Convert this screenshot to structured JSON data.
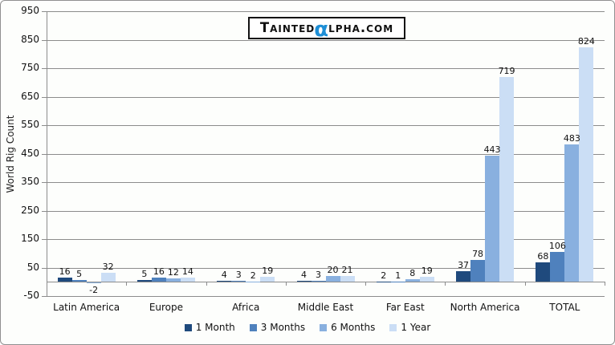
{
  "logo": {
    "prefix": "Tainted",
    "alpha": "α",
    "suffix": "lpha.com",
    "alpha_color": "#1E8FD6"
  },
  "chart_data": {
    "type": "bar",
    "title": "",
    "categories": [
      "Latin America",
      "Europe",
      "Africa",
      "Middle East",
      "Far East",
      "North America",
      "TOTAL"
    ],
    "series": [
      {
        "name": "1 Month",
        "color": "#1F4A7D",
        "pattern": "none",
        "values": [
          16,
          5,
          4,
          4,
          2,
          37,
          68
        ]
      },
      {
        "name": "3 Months",
        "color": "#4F81BD",
        "pattern": "none",
        "values": [
          5,
          16,
          3,
          3,
          1,
          78,
          106
        ]
      },
      {
        "name": "6 Months",
        "color": "#89B0DF",
        "pattern": "dots-light",
        "values": [
          -2,
          12,
          2,
          20,
          8,
          443,
          483
        ]
      },
      {
        "name": "1 Year",
        "color": "#CBDEF5",
        "pattern": "dots-blue",
        "values": [
          32,
          14,
          19,
          21,
          19,
          719,
          824
        ]
      }
    ],
    "xlabel": "",
    "ylabel": "World Rig Count",
    "ylim": [
      -50,
      950
    ],
    "ytick_step": 100,
    "grid": true,
    "legend_position": "bottom",
    "bar_value_labels": true
  },
  "colors": {
    "gridline": "#8C8C8C",
    "axis": "#8C8C8C",
    "frame_border": "#909090",
    "text": "#111111",
    "background": "#FDFEFC"
  }
}
